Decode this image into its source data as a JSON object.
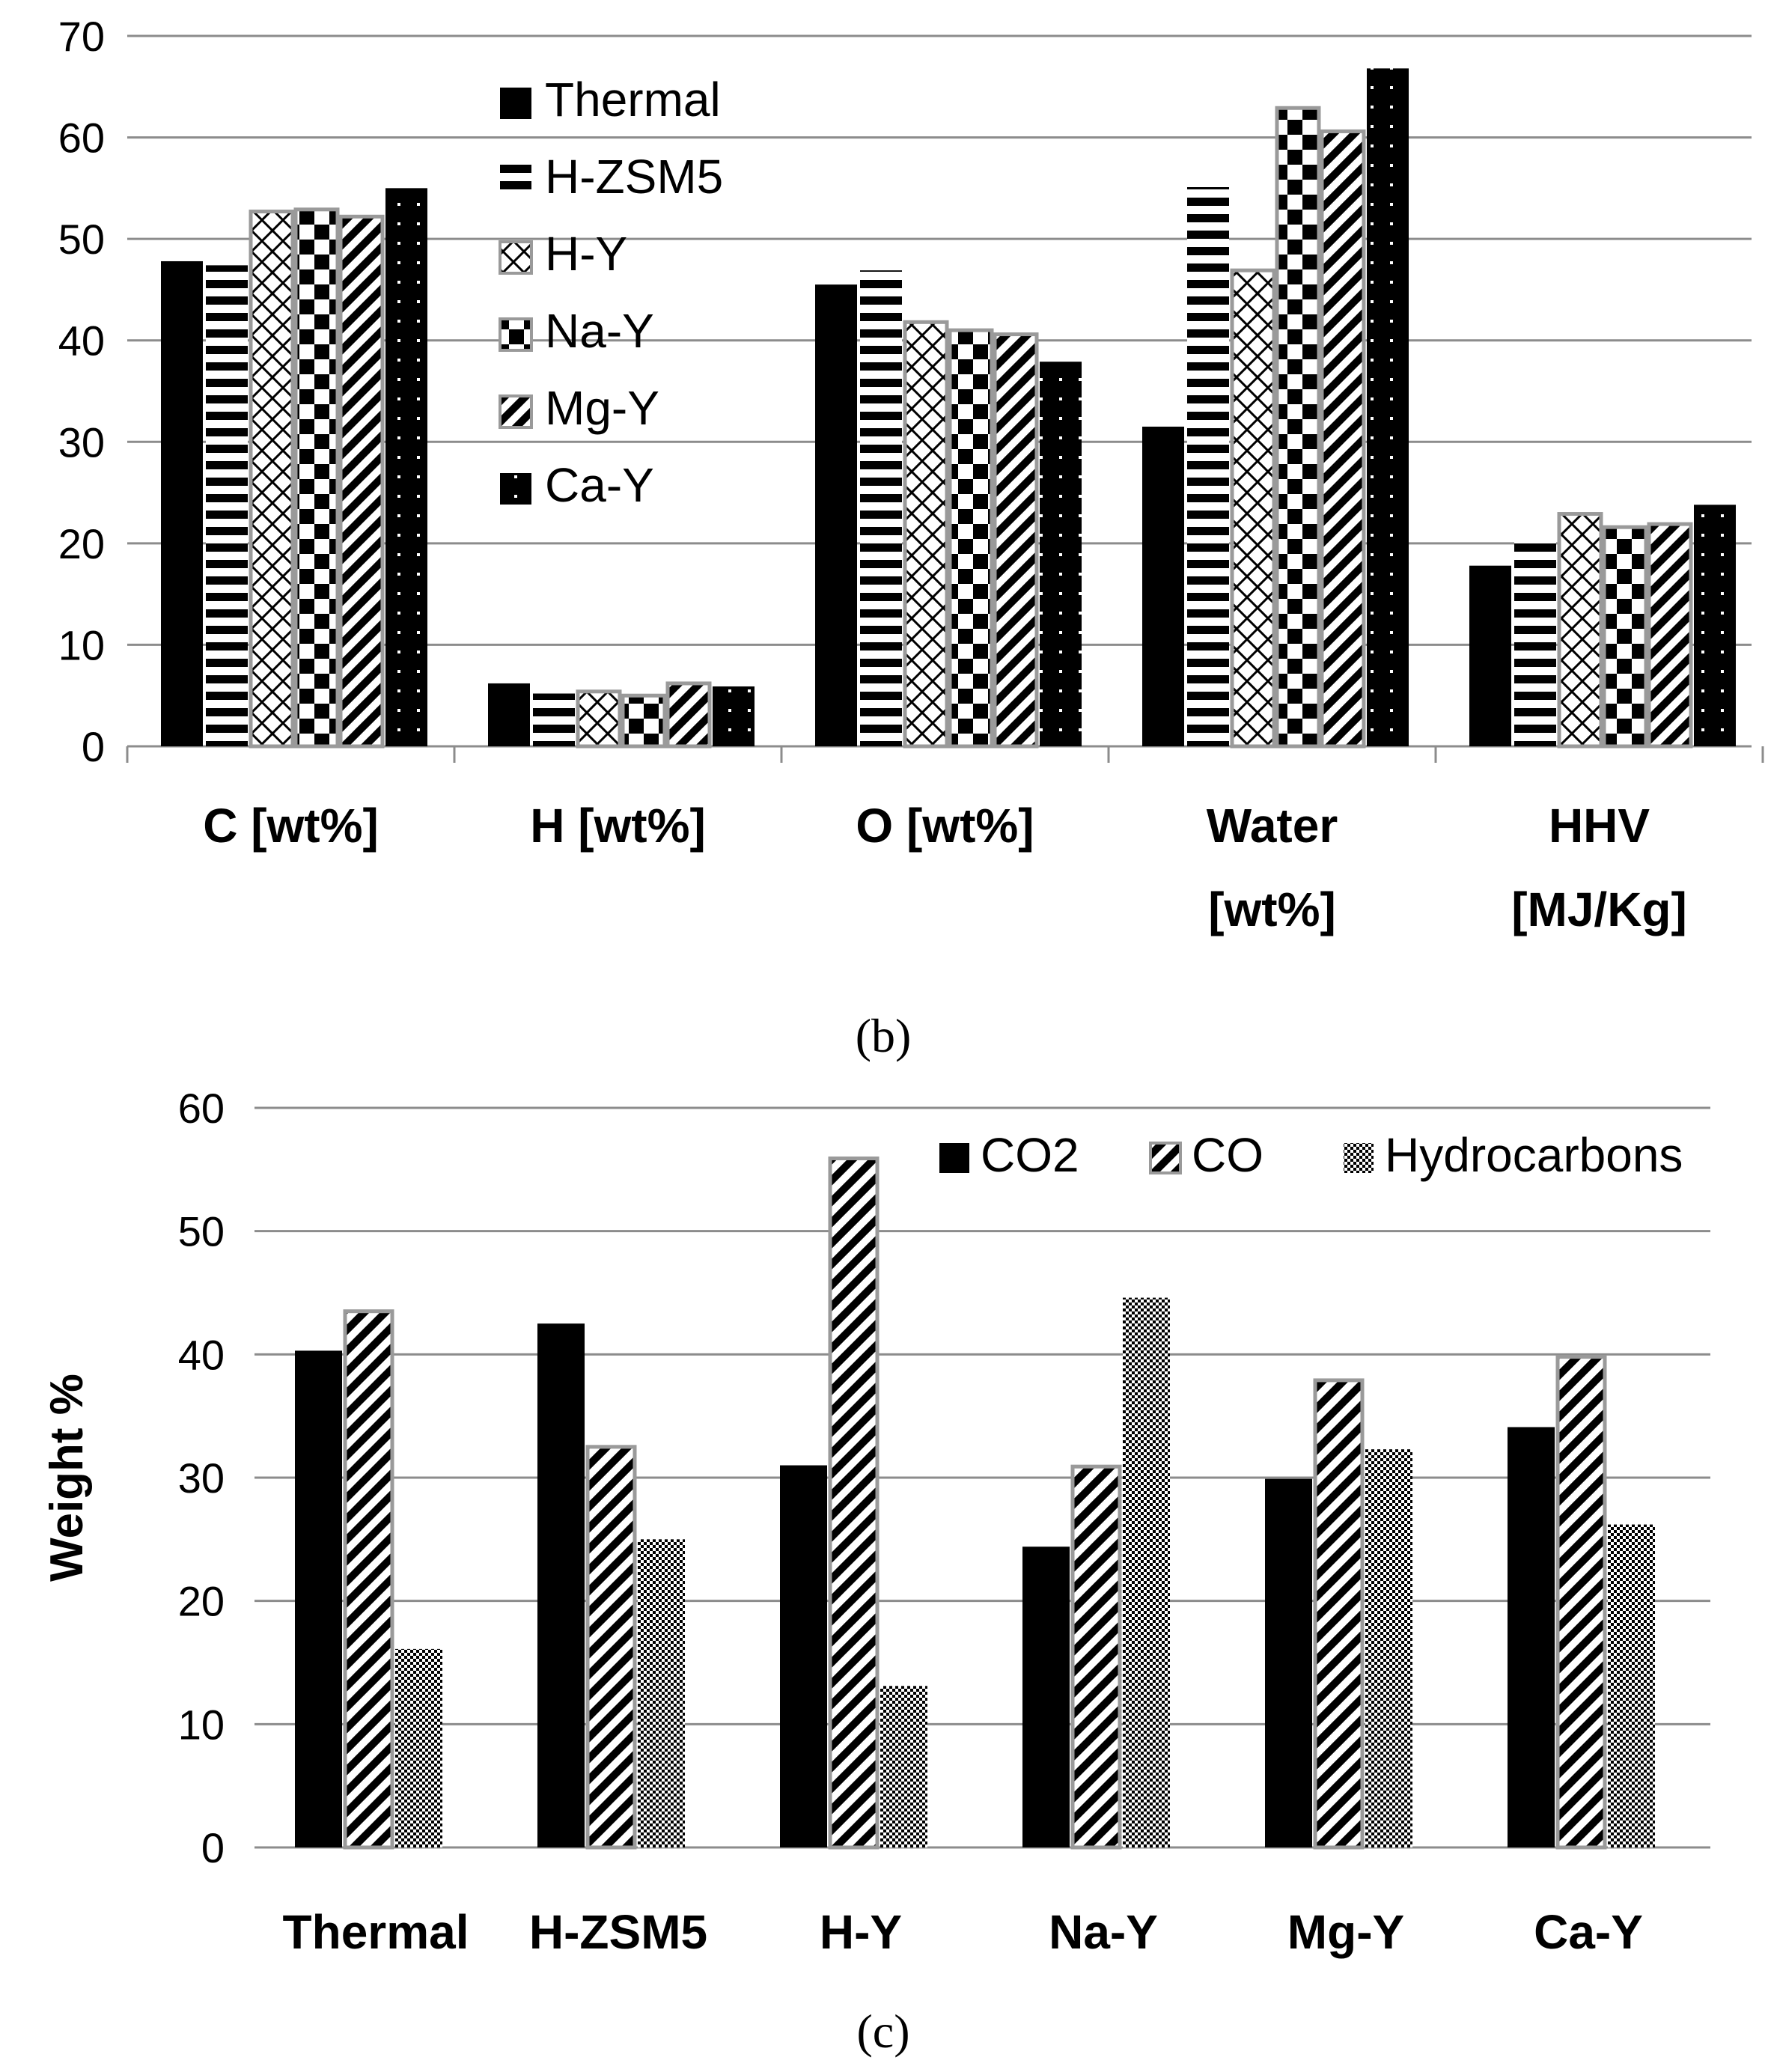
{
  "chart_data": [
    {
      "type": "bar",
      "panel_label": "(b)",
      "categories": [
        [
          "C [wt%]"
        ],
        [
          "H [wt%]"
        ],
        [
          "O [wt%]"
        ],
        [
          "Water",
          "[wt%]"
        ],
        [
          "HHV",
          "[MJ/Kg]"
        ]
      ],
      "ylim": [
        0,
        70
      ],
      "yticks": [
        0,
        10,
        20,
        30,
        40,
        50,
        60,
        70
      ],
      "grid": true,
      "legend_position": "upper-left inside plot",
      "series": [
        {
          "name": "Thermal",
          "pattern": "solid",
          "values": [
            47.8,
            6.2,
            45.5,
            31.5,
            17.8
          ]
        },
        {
          "name": "H-ZSM5",
          "pattern": "hstripes",
          "values": [
            47.4,
            5.2,
            46.9,
            55.1,
            20.8
          ]
        },
        {
          "name": "H-Y",
          "pattern": "lattice",
          "values": [
            52.7,
            5.4,
            41.8,
            46.9,
            22.9
          ]
        },
        {
          "name": "Na-Y",
          "pattern": "checker",
          "values": [
            52.9,
            5.0,
            41.0,
            62.9,
            21.6
          ]
        },
        {
          "name": "Mg-Y",
          "pattern": "diagonal",
          "values": [
            52.2,
            6.2,
            40.6,
            60.6,
            21.9
          ]
        },
        {
          "name": "Ca-Y",
          "pattern": "dots",
          "values": [
            55.0,
            5.9,
            37.9,
            66.8,
            23.8
          ]
        }
      ],
      "xlabel": "",
      "ylabel": ""
    },
    {
      "type": "bar",
      "panel_label": "(c)",
      "categories": [
        [
          "Thermal"
        ],
        [
          "H-ZSM5"
        ],
        [
          "H-Y"
        ],
        [
          "Na-Y"
        ],
        [
          "Mg-Y"
        ],
        [
          "Ca-Y"
        ]
      ],
      "ylim": [
        0,
        60
      ],
      "yticks": [
        0,
        10,
        20,
        30,
        40,
        50,
        60
      ],
      "grid": true,
      "legend_position": "top-right",
      "ylabel": "Weight %",
      "xlabel": "",
      "series": [
        {
          "name": "CO2",
          "pattern": "solid",
          "values": [
            40.3,
            42.5,
            31.0,
            24.4,
            29.9,
            34.1
          ]
        },
        {
          "name": "CO",
          "pattern": "diagonal",
          "values": [
            43.5,
            32.5,
            55.9,
            30.9,
            37.9,
            39.8
          ]
        },
        {
          "name": "Hydrocarbons",
          "pattern": "finecheck",
          "values": [
            16.1,
            25.0,
            13.1,
            44.6,
            32.3,
            26.2
          ]
        }
      ]
    }
  ]
}
